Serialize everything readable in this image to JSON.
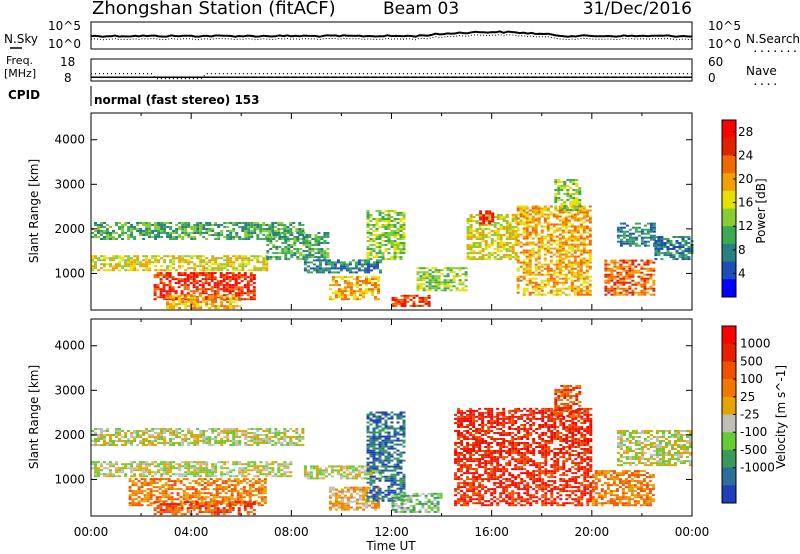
{
  "header": {
    "station": "Zhongshan Station (fitACF)",
    "beam": "Beam 03",
    "date": "31/Dec/2016"
  },
  "noise_panel": {
    "left_label": "N.Sky",
    "left_ticks": [
      "10^5",
      "10^0"
    ],
    "right_ticks": [
      "10^5",
      "10^0"
    ],
    "right_label": "N.Search",
    "right_legend": "........"
  },
  "freq_panel": {
    "left_label_1": "Freq.",
    "left_label_2": "[MHz]",
    "left_ticks": [
      "18",
      "8"
    ],
    "right_ticks": [
      "60",
      "0"
    ],
    "right_label": "Nave",
    "right_legend": "....",
    "freq_level_mhz": 9,
    "nave_level": 18
  },
  "cpid": {
    "label": "CPID",
    "text": "normal (fast stereo) 153"
  },
  "chart_data": [
    {
      "type": "heatmap",
      "parameter": "power",
      "ylabel": "Slant Range [km]",
      "xlabel": "Time UT",
      "x_ticks": [
        "00:00",
        "04:00",
        "08:00",
        "12:00",
        "16:00",
        "20:00",
        "00:00"
      ],
      "x_range_hours": [
        0,
        24
      ],
      "y_ticks": [
        1000,
        2000,
        3000,
        4000
      ],
      "ylim": [
        180,
        4600
      ],
      "colorbar": {
        "label": "Power [dB]",
        "ticks": [
          4,
          8,
          12,
          16,
          20,
          24,
          28
        ],
        "range": [
          0,
          30
        ],
        "colors": [
          "#0000ff",
          "#1e4db5",
          "#2a8080",
          "#3aaa55",
          "#88cc33",
          "#e8e000",
          "#f0a000",
          "#f06800",
          "#e02000",
          "#ff0000"
        ]
      },
      "echo_bands": [
        {
          "t0": 0.0,
          "t1": 8.5,
          "r0": 1750,
          "r1": 2150,
          "level": 3
        },
        {
          "t0": 0.0,
          "t1": 7.0,
          "r0": 1050,
          "r1": 1400,
          "level": 5
        },
        {
          "t0": 2.5,
          "t1": 6.5,
          "r0": 400,
          "r1": 1000,
          "level": 8
        },
        {
          "t0": 3.0,
          "t1": 6.0,
          "r0": 200,
          "r1": 500,
          "level": 6
        },
        {
          "t0": 7.0,
          "t1": 9.5,
          "r0": 1300,
          "r1": 1900,
          "level": 3
        },
        {
          "t0": 8.5,
          "t1": 11.5,
          "r0": 1000,
          "r1": 1300,
          "level": 2
        },
        {
          "t0": 9.5,
          "t1": 11.5,
          "r0": 400,
          "r1": 900,
          "level": 6
        },
        {
          "t0": 11.0,
          "t1": 12.5,
          "r0": 1300,
          "r1": 2400,
          "level": 4
        },
        {
          "t0": 12.0,
          "t1": 13.5,
          "r0": 250,
          "r1": 500,
          "level": 8
        },
        {
          "t0": 13.0,
          "t1": 15.0,
          "r0": 600,
          "r1": 1100,
          "level": 4
        },
        {
          "t0": 15.0,
          "t1": 17.0,
          "r0": 1300,
          "r1": 2300,
          "level": 5
        },
        {
          "t0": 15.5,
          "t1": 16.0,
          "r0": 2100,
          "r1": 2400,
          "level": 9
        },
        {
          "t0": 17.0,
          "t1": 20.0,
          "r0": 500,
          "r1": 2500,
          "level": 6
        },
        {
          "t0": 18.5,
          "t1": 19.5,
          "r0": 2400,
          "r1": 3100,
          "level": 4
        },
        {
          "t0": 20.5,
          "t1": 22.5,
          "r0": 500,
          "r1": 1300,
          "level": 7
        },
        {
          "t0": 21.0,
          "t1": 22.5,
          "r0": 1600,
          "r1": 2100,
          "level": 2
        },
        {
          "t0": 22.5,
          "t1": 24.0,
          "r0": 1300,
          "r1": 1800,
          "level": 2
        }
      ]
    },
    {
      "type": "heatmap",
      "parameter": "velocity",
      "ylabel": "Slant Range [km]",
      "xlabel": "Time UT",
      "x_ticks": [
        "00:00",
        "04:00",
        "08:00",
        "12:00",
        "16:00",
        "20:00",
        "00:00"
      ],
      "x_range_hours": [
        0,
        24
      ],
      "y_ticks": [
        1000,
        2000,
        3000,
        4000
      ],
      "ylim": [
        180,
        4600
      ],
      "colorbar": {
        "label": "Velocity [m s^-1]",
        "ticks": [
          "1000",
          "500",
          "100",
          "25",
          "-25",
          "-100",
          "-500",
          "-1000"
        ],
        "colors": [
          "#1f3fb8",
          "#2a6f9a",
          "#3a9a5a",
          "#66cc33",
          "#c0c0b8",
          "#e6a400",
          "#f07800",
          "#f05000",
          "#e82000",
          "#ff0000"
        ]
      },
      "echo_bands": [
        {
          "t0": 0.0,
          "t1": 8.5,
          "r0": 1750,
          "r1": 2150,
          "level": 4
        },
        {
          "t0": 0.0,
          "t1": 8.0,
          "r0": 1050,
          "r1": 1400,
          "level": 4
        },
        {
          "t0": 1.5,
          "t1": 7.0,
          "r0": 400,
          "r1": 1000,
          "level": 6
        },
        {
          "t0": 2.5,
          "t1": 6.5,
          "r0": 200,
          "r1": 500,
          "level": 7
        },
        {
          "t0": 8.5,
          "t1": 11.5,
          "r0": 1000,
          "r1": 1300,
          "level": 4
        },
        {
          "t0": 9.5,
          "t1": 11.5,
          "r0": 300,
          "r1": 800,
          "level": 5
        },
        {
          "t0": 11.0,
          "t1": 12.5,
          "r0": 500,
          "r1": 2500,
          "level": 1
        },
        {
          "t0": 12.0,
          "t1": 14.0,
          "r0": 250,
          "r1": 700,
          "level": 3
        },
        {
          "t0": 14.5,
          "t1": 20.0,
          "r0": 400,
          "r1": 2600,
          "level": 8
        },
        {
          "t0": 18.5,
          "t1": 19.5,
          "r0": 2400,
          "r1": 3100,
          "level": 7
        },
        {
          "t0": 20.0,
          "t1": 22.5,
          "r0": 400,
          "r1": 1200,
          "level": 6
        },
        {
          "t0": 21.0,
          "t1": 24.0,
          "r0": 1300,
          "r1": 2100,
          "level": 4
        }
      ]
    }
  ]
}
